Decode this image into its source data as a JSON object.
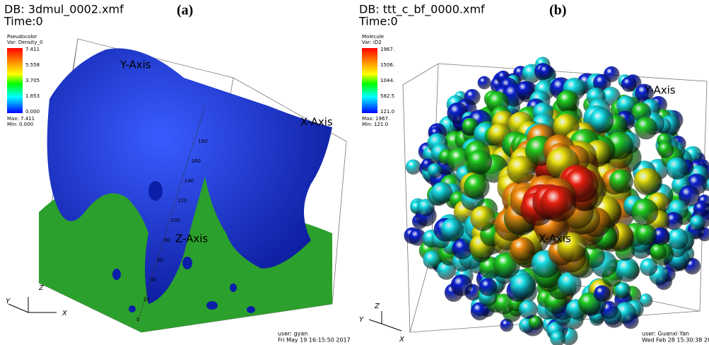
{
  "panel_a": {
    "db": "DB: 3dmul_0002.xmf",
    "time": "Time:0",
    "label": "(a)",
    "legend": {
      "plot": "Pseudocolor",
      "var": "Var: Density_0",
      "ticks": [
        "7.411",
        "5.558",
        "3.705",
        "1.853",
        "0.000"
      ],
      "max": "Max: 7.411",
      "min": "Min: 0.000"
    },
    "axes": {
      "x": "X-Axis",
      "y": "Y-Axis",
      "z": "Z-Axis"
    },
    "z_ticks": [
      "0",
      "20",
      "40",
      "60",
      "80",
      "100",
      "120",
      "140",
      "160",
      "180"
    ],
    "triad": {
      "x": "X",
      "y": "Y",
      "z": "Z"
    },
    "user": "user: gyan",
    "date": "Fri May 19 16:15:50 2017"
  },
  "panel_b": {
    "db": "DB: ttt_c_bf_0000.xmf",
    "time": "Time:0",
    "label": "(b)",
    "legend": {
      "plot": "Molecule",
      "var": "Var: iD2",
      "ticks": [
        "1967.",
        "1506.",
        "1044.",
        "582.5",
        "121.0"
      ],
      "max": "Max: 1967.",
      "min": "Min: 121.0"
    },
    "axes": {
      "x": "X-Axis",
      "y": "Y-Axis",
      "z": "Z-Axis"
    },
    "triad": {
      "x": "X",
      "y": "Y",
      "z": "Z"
    },
    "user": "user: Guanxi Yan",
    "date": "Wed Feb 28 15:30:38 20"
  }
}
